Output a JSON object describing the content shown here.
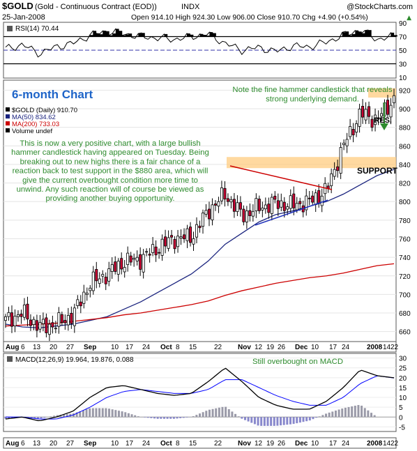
{
  "header": {
    "symbol": "$GOLD",
    "name": "(Gold - Continuous Contract (EOD))",
    "exchange": "INDX",
    "credit": "@StockCharts.com",
    "date": "25-Jan-2008",
    "ohlc": "Open 914.10  High 924.30  Low 906.00  Close 910.70  Chg +4.90 (+0.54%)",
    "ohlc_arrow": "▲"
  },
  "rsi_panel": {
    "label": "RSI(14) 70.44",
    "ticks": [
      "90",
      "70",
      "50",
      "30",
      "10"
    ]
  },
  "price_panel": {
    "title": "6-month Chart",
    "legend": [
      {
        "text": "$GOLD (Daily) 910.70",
        "color": "#000000"
      },
      {
        "text": "MA(50) 834.62",
        "color": "#1a237e"
      },
      {
        "text": "MA(200) 733.03",
        "color": "#cc0000"
      },
      {
        "text": "Volume undef",
        "color": "#000000"
      }
    ],
    "ticks": [
      "920",
      "900",
      "880",
      "860",
      "840",
      "820",
      "800",
      "780",
      "760",
      "740",
      "720",
      "700",
      "680",
      "660"
    ],
    "annotation_main": "This is now a very positive chart, with a large bullish hammer candlestick having appeared on Tuesday. Being breaking out to new highs there is a fair chance of a reaction back to test support in the $880 area, which will give the current overbought condition more time to unwind. Any such reaction will of course be viewed as providing another buying opportunity.",
    "annotation_hammer": "Note the fine hammer candlestick that reveals strong underlying demand.",
    "label_res": "RES.",
    "label_support": "SUPPORT"
  },
  "macd_panel": {
    "label": "MACD(12,26,9) 19.964, 19.876, 0.088",
    "annotation": "Still overbought on MACD",
    "ticks": [
      "30",
      "25",
      "20",
      "15",
      "10",
      "5",
      "0",
      "-5"
    ]
  },
  "x_axis": [
    "Aug",
    "6",
    "13",
    "20",
    "27",
    "Sep",
    "10",
    "17",
    "24",
    "Oct",
    "8",
    "15",
    "22",
    "Nov",
    "12",
    "19",
    "26",
    "Dec",
    "10",
    "17",
    "24",
    "2008",
    "14",
    "22"
  ],
  "colors": {
    "up": "#ffffff",
    "down": "#cc0033",
    "ma50": "#1a237e",
    "ma200": "#cc0000",
    "annotation": "#2e8b2e",
    "title": "#1e64c8",
    "band": "#ffcc80",
    "macd": "#000000",
    "signal": "#0000ff",
    "hist": "#9a9aa8"
  },
  "chart_data": [
    {
      "type": "line",
      "title": "RSI(14) 70.44",
      "ylim": [
        10,
        90
      ],
      "reference_lines": [
        70,
        50,
        30
      ],
      "x_dates": [
        "Aug 6",
        "Aug 13",
        "Aug 20",
        "Aug 27",
        "Sep 4",
        "Sep 10",
        "Sep 17",
        "Sep 24",
        "Oct 1",
        "Oct 8",
        "Oct 15",
        "Oct 22",
        "Nov 1",
        "Nov 12",
        "Nov 19",
        "Nov 26",
        "Dec 3",
        "Dec 10",
        "Dec 17",
        "Dec 24",
        "Jan 2",
        "Jan 14",
        "Jan 22",
        "Jan 25"
      ],
      "values": [
        52,
        58,
        45,
        55,
        60,
        72,
        78,
        74,
        70,
        68,
        66,
        70,
        74,
        60,
        50,
        54,
        48,
        56,
        55,
        62,
        72,
        80,
        66,
        70.44
      ]
    },
    {
      "type": "candlestick",
      "title": "$GOLD (Daily) 910.70",
      "ylim": [
        650,
        930
      ],
      "x_dates": [
        "Aug 6",
        "Aug 13",
        "Aug 20",
        "Aug 27",
        "Sep 4",
        "Sep 10",
        "Sep 17",
        "Sep 24",
        "Oct 1",
        "Oct 8",
        "Oct 15",
        "Oct 22",
        "Nov 1",
        "Nov 12",
        "Nov 19",
        "Nov 26",
        "Dec 3",
        "Dec 10",
        "Dec 17",
        "Dec 24",
        "Jan 2",
        "Jan 14",
        "Jan 22",
        "Jan 25"
      ],
      "close": [
        672,
        680,
        665,
        668,
        678,
        712,
        722,
        735,
        738,
        750,
        760,
        762,
        790,
        808,
        785,
        794,
        798,
        796,
        800,
        812,
        860,
        895,
        888,
        910.7
      ],
      "series": [
        {
          "name": "MA(50) 834.62",
          "values": [
            668,
            665,
            664,
            666,
            668,
            672,
            676,
            684,
            692,
            702,
            712,
            722,
            736,
            754,
            766,
            778,
            786,
            790,
            795,
            800,
            808,
            818,
            828,
            834.62
          ]
        },
        {
          "name": "MA(200) 733.03",
          "values": [
            666,
            667,
            668,
            669,
            671,
            673,
            675,
            678,
            680,
            683,
            686,
            689,
            693,
            699,
            704,
            708,
            712,
            715,
            718,
            720,
            723,
            727,
            731,
            733.03
          ]
        }
      ],
      "resistance_band": [
        912,
        922
      ],
      "support_band": [
        836,
        848
      ]
    },
    {
      "type": "line",
      "title": "MACD(12,26,9) 19.964, 19.876, 0.088",
      "ylim": [
        -7,
        32
      ],
      "x_dates": [
        "Aug 6",
        "Aug 13",
        "Aug 20",
        "Aug 27",
        "Sep 4",
        "Sep 10",
        "Sep 17",
        "Sep 24",
        "Oct 1",
        "Oct 8",
        "Oct 15",
        "Oct 22",
        "Nov 1",
        "Nov 12",
        "Nov 19",
        "Nov 26",
        "Dec 3",
        "Dec 10",
        "Dec 17",
        "Dec 24",
        "Jan 2",
        "Jan 14",
        "Jan 22",
        "Jan 25"
      ],
      "series": [
        {
          "name": "MACD",
          "values": [
            -1,
            0,
            -2,
            0,
            3,
            10,
            15,
            16,
            14,
            12,
            11,
            12,
            18,
            25,
            18,
            10,
            6,
            4,
            4,
            8,
            15,
            24,
            21,
            19.964
          ]
        },
        {
          "name": "Signal",
          "values": [
            0,
            0,
            -1,
            -1,
            1,
            5,
            10,
            13,
            14,
            13,
            12,
            12,
            14,
            19,
            19,
            15,
            11,
            8,
            6,
            6,
            10,
            17,
            21,
            19.876
          ]
        }
      ]
    }
  ]
}
